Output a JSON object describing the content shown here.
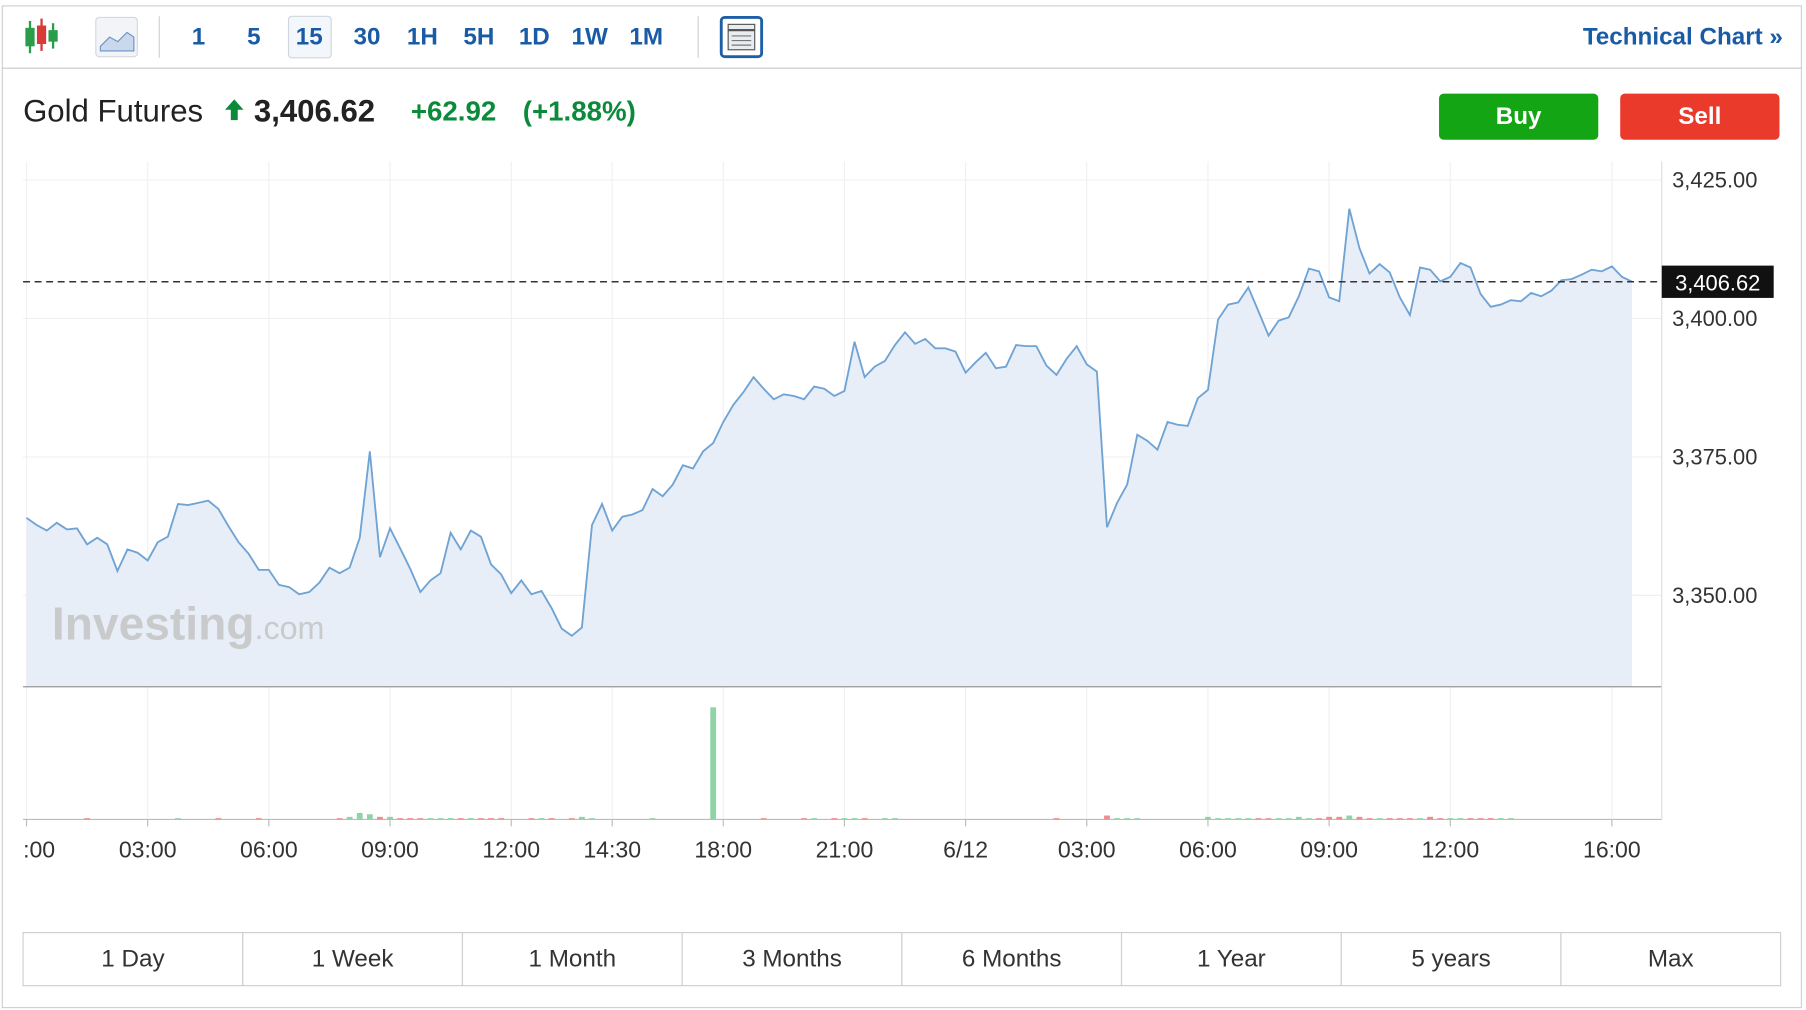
{
  "toolbar": {
    "intervals": [
      "1",
      "5",
      "15",
      "30",
      "1H",
      "5H",
      "1D",
      "1W",
      "1M"
    ],
    "active_interval": 2,
    "link": "Technical Chart »"
  },
  "header": {
    "instrument": "Gold Futures",
    "change": "+62.92",
    "change_percent": "(+1.88%)"
  },
  "actions": {
    "buy": "Buy",
    "sell": "Sell"
  },
  "watermark": [
    "Investing",
    ".com"
  ],
  "ranges": [
    "1 Day",
    "1 Week",
    "1 Month",
    "3 Months",
    "6 Months",
    "1 Year",
    "5 years",
    "Max"
  ],
  "chart_data": {
    "type": "area",
    "color": "#6fa3d3",
    "fill_color": "#e8eef7",
    "current_price": {
      "value": 3406.62,
      "label": "3,406.62"
    },
    "values": [
      3364.0,
      3362.7,
      3361.7,
      3363.1,
      3361.9,
      3362.1,
      3359.2,
      3360.4,
      3359.2,
      3354.4,
      3358.3,
      3357.7,
      3356.3,
      3359.6,
      3360.6,
      3366.5,
      3366.3,
      3366.7,
      3367.1,
      3365.6,
      3362.5,
      3359.6,
      3357.5,
      3354.6,
      3354.6,
      3351.9,
      3351.5,
      3350.2,
      3350.6,
      3352.3,
      3355.0,
      3354.0,
      3355.0,
      3360.4,
      3376.0,
      3356.9,
      3362.1,
      3358.5,
      3354.8,
      3350.6,
      3352.7,
      3354.0,
      3361.3,
      3358.3,
      3361.7,
      3360.6,
      3355.6,
      3353.8,
      3350.4,
      3352.7,
      3350.2,
      3350.8,
      3347.7,
      3344.0,
      3342.7,
      3344.2,
      3362.7,
      3366.5,
      3361.7,
      3364.2,
      3364.6,
      3365.4,
      3369.2,
      3367.9,
      3370.0,
      3373.5,
      3372.9,
      3376.0,
      3377.5,
      3381.3,
      3384.4,
      3386.7,
      3389.4,
      3387.3,
      3385.4,
      3386.3,
      3386.0,
      3385.4,
      3387.7,
      3387.3,
      3386.0,
      3386.9,
      3395.8,
      3389.4,
      3391.3,
      3392.3,
      3395.2,
      3397.5,
      3395.4,
      3396.3,
      3394.6,
      3394.6,
      3394.0,
      3390.2,
      3392.1,
      3393.8,
      3391.0,
      3391.3,
      3395.2,
      3395.0,
      3395.0,
      3391.5,
      3389.8,
      3392.7,
      3395.0,
      3391.7,
      3390.4,
      3362.3,
      3366.7,
      3370.0,
      3379.0,
      3377.9,
      3376.3,
      3381.3,
      3380.8,
      3380.6,
      3385.6,
      3387.1,
      3399.8,
      3402.5,
      3402.9,
      3405.6,
      3401.3,
      3396.9,
      3399.6,
      3400.2,
      3404.0,
      3409.0,
      3408.5,
      3403.8,
      3403.1,
      3419.8,
      3412.7,
      3408.1,
      3409.8,
      3408.3,
      3403.8,
      3400.6,
      3409.2,
      3408.8,
      3406.7,
      3407.5,
      3410.0,
      3409.2,
      3404.4,
      3402.1,
      3402.5,
      3403.3,
      3403.1,
      3404.6,
      3404.0,
      3405.0,
      3406.9,
      3407.1,
      3407.9,
      3408.8,
      3408.5,
      3409.4,
      3407.5,
      3406.62
    ],
    "xlim": [
      -0.34,
      161.94
    ],
    "xticks": [
      {
        "value": 0,
        "label": ":00"
      },
      {
        "value": 12,
        "label": "03:00"
      },
      {
        "value": 24,
        "label": "06:00"
      },
      {
        "value": 36,
        "label": "09:00"
      },
      {
        "value": 48,
        "label": "12:00"
      },
      {
        "value": 58,
        "label": "14:30"
      },
      {
        "value": 69,
        "label": "18:00"
      },
      {
        "value": 81,
        "label": "21:00"
      },
      {
        "value": 93,
        "label": "6/12"
      },
      {
        "value": 105,
        "label": "03:00"
      },
      {
        "value": 117,
        "label": "06:00"
      },
      {
        "value": 129,
        "label": "09:00"
      },
      {
        "value": 141,
        "label": "12:00"
      },
      {
        "value": 157,
        "label": "16:00"
      }
    ],
    "ylim": [
      3333.5,
      3428.3
    ],
    "yticks": [
      {
        "value": 3350,
        "label": "3,350.00"
      },
      {
        "value": 3375,
        "label": "3,375.00"
      },
      {
        "value": 3400,
        "label": "3,400.00"
      },
      {
        "value": 3425,
        "label": "3,425.00"
      }
    ],
    "grid": true,
    "volume": {
      "ylim": [
        0,
        100
      ],
      "up_color": "#8fd4a6",
      "down_color": "#ef8b8b",
      "values": [
        0,
        0,
        0,
        0,
        0,
        0,
        1,
        0,
        0,
        0,
        0,
        0,
        0,
        0,
        0,
        1,
        0,
        0,
        0,
        1,
        0,
        0,
        0,
        1,
        0,
        0,
        0,
        0,
        0,
        0,
        0,
        1,
        2,
        5,
        4,
        2,
        2,
        1,
        1,
        1,
        1,
        1,
        1,
        1,
        1,
        1,
        1,
        1,
        0,
        0,
        1,
        1,
        1,
        0,
        1,
        2,
        1,
        0,
        0,
        0,
        0,
        0,
        1,
        0,
        0,
        0,
        0,
        0,
        86,
        0,
        0,
        0,
        0,
        1,
        0,
        0,
        0,
        1,
        1,
        0,
        1,
        1,
        1,
        1,
        0,
        1,
        1,
        0,
        0,
        0,
        0,
        0,
        0,
        0,
        0,
        0,
        0,
        0,
        0,
        0,
        0,
        0,
        1,
        0,
        0,
        0,
        0,
        3,
        1,
        1,
        1,
        0,
        0,
        0,
        0,
        0,
        0,
        2,
        1,
        1,
        1,
        1,
        1,
        1,
        1,
        1,
        2,
        1,
        1,
        2,
        2,
        3,
        2,
        1,
        1,
        1,
        1,
        1,
        1,
        2,
        1,
        1,
        1,
        1,
        1,
        1,
        1,
        1,
        0,
        0,
        0,
        0,
        0,
        0,
        0,
        0,
        0,
        0,
        0,
        0
      ]
    }
  }
}
